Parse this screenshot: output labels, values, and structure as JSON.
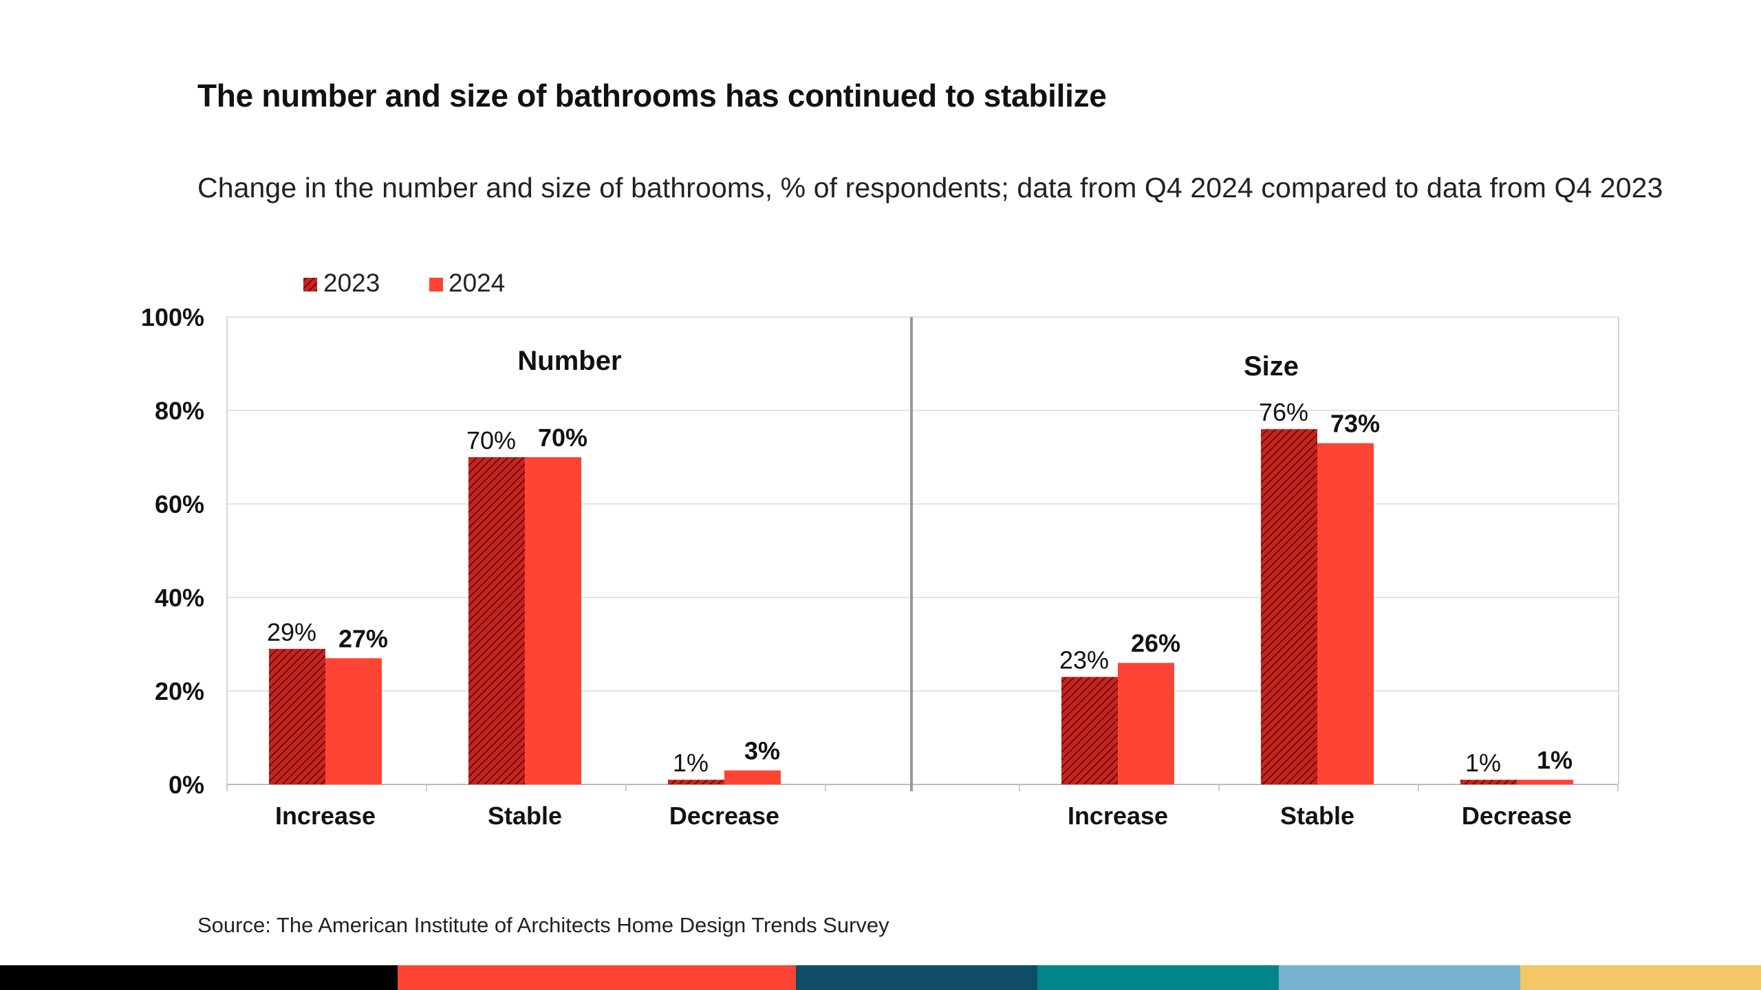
{
  "title": "The number and size of bathrooms has continued to stabilize",
  "subtitle": "Change in the number and size of bathrooms, % of respondents; data from Q4 2024 compared to data from Q4 2023",
  "source": "Source: The American Institute of Architects Home Design Trends Survey",
  "colors": {
    "series_2023": "#c8231e",
    "series_2023_hatch": "#4a0d0a",
    "series_2024": "#ff4433",
    "gridline": "#e4e4e4",
    "divider": "#999999",
    "stripe": [
      "#000000",
      "#ff4433",
      "#0f4c66",
      "#008689",
      "#74b2cd",
      "#f3c765"
    ]
  },
  "chart_data": [
    {
      "type": "bar",
      "panel_title": "Number",
      "categories": [
        "Increase",
        "Stable",
        "Decrease"
      ],
      "series": [
        {
          "name": "2023",
          "values": [
            29,
            70,
            1
          ],
          "labels": [
            "29%",
            "70%",
            "1%"
          ]
        },
        {
          "name": "2024",
          "values": [
            27,
            70,
            3
          ],
          "labels": [
            "27%",
            "70%",
            "3%"
          ]
        }
      ],
      "ylim": [
        0,
        100
      ],
      "yticks": [
        "0%",
        "20%",
        "40%",
        "60%",
        "80%",
        "100%"
      ],
      "grid": true,
      "legend": "top-left"
    },
    {
      "type": "bar",
      "panel_title": "Size",
      "categories": [
        "Increase",
        "Stable",
        "Decrease"
      ],
      "series": [
        {
          "name": "2023",
          "values": [
            23,
            76,
            1
          ],
          "labels": [
            "23%",
            "76%",
            "1%"
          ]
        },
        {
          "name": "2024",
          "values": [
            26,
            73,
            1
          ],
          "labels": [
            "26%",
            "73%",
            "1%"
          ]
        }
      ],
      "ylim": [
        0,
        100
      ],
      "grid": true
    }
  ]
}
